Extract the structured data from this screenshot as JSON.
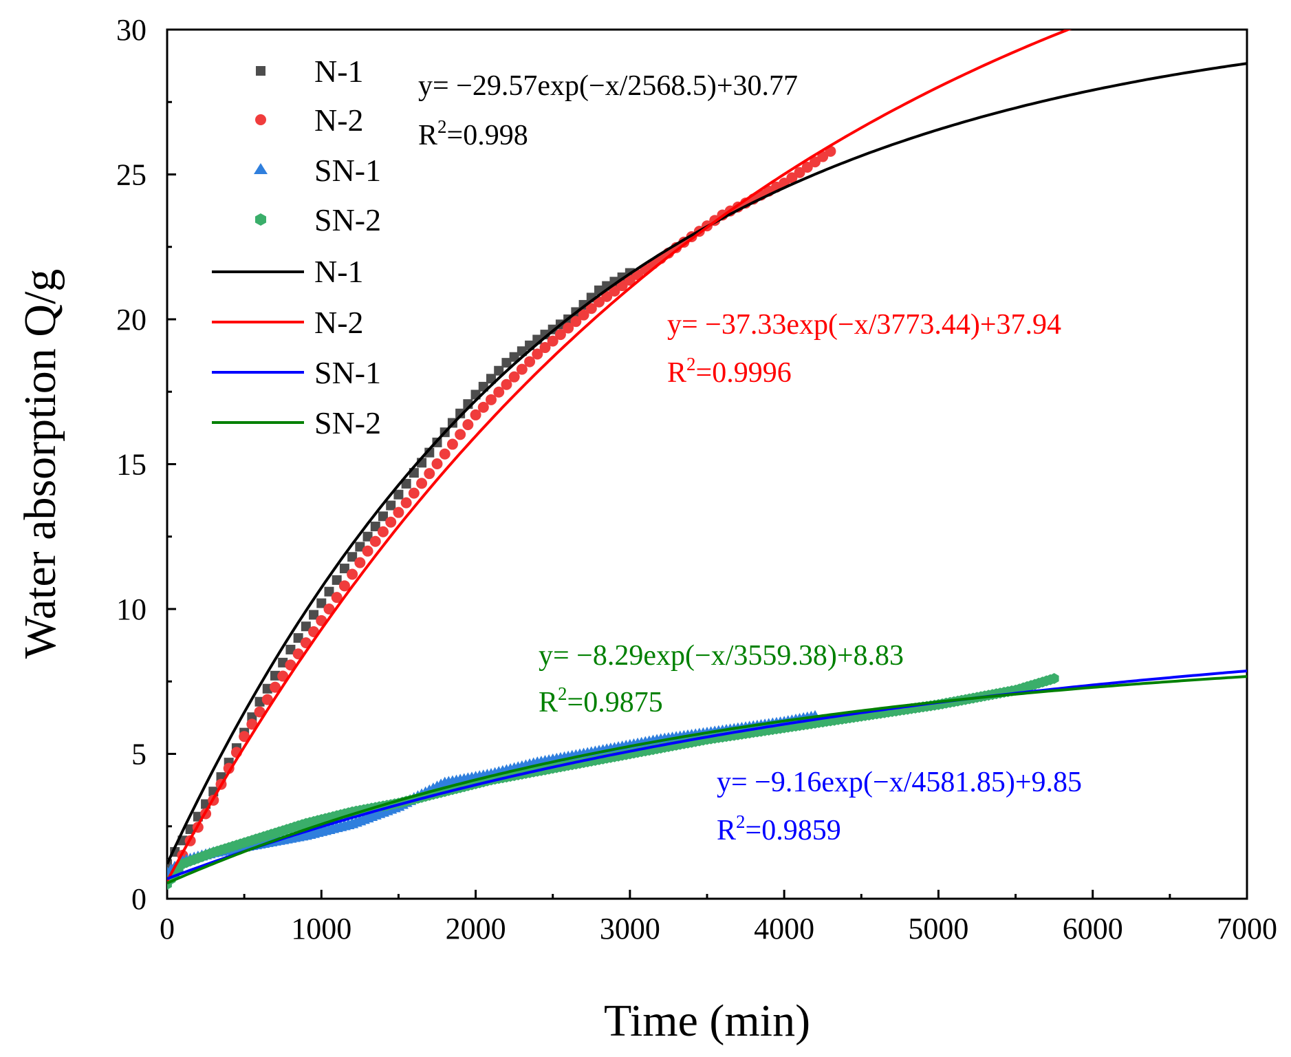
{
  "chart_data": {
    "type": "scatter",
    "title": "",
    "xlabel": "Time (min)",
    "ylabel": "Water absorption Q/g",
    "xlim": [
      0,
      7000
    ],
    "ylim": [
      0,
      30
    ],
    "xticks": [
      0,
      1000,
      2000,
      3000,
      4000,
      5000,
      6000,
      7000
    ],
    "yticks": [
      0,
      5,
      10,
      15,
      20,
      25,
      30
    ],
    "grid": false,
    "legend": {
      "position": "top-left",
      "entries": [
        {
          "label": "N-1",
          "kind": "marker",
          "marker": "square",
          "color": "#4d4d4d"
        },
        {
          "label": "N-2",
          "kind": "marker",
          "marker": "circle",
          "color": "#f03c3c"
        },
        {
          "label": "SN-1",
          "kind": "marker",
          "marker": "triangle",
          "color": "#2f7fdd"
        },
        {
          "label": "SN-2",
          "kind": "marker",
          "marker": "hexagon",
          "color": "#3aae6a"
        },
        {
          "label": "N-1",
          "kind": "line",
          "color": "#000000"
        },
        {
          "label": "N-2",
          "kind": "line",
          "color": "#ff0000"
        },
        {
          "label": "SN-1",
          "kind": "line",
          "color": "#0000ff"
        },
        {
          "label": "SN-2",
          "kind": "line",
          "color": "#008000"
        }
      ]
    },
    "series": [
      {
        "name": "N-1",
        "marker": "square",
        "color": "#4d4d4d",
        "marker_step": 50,
        "fit": {
          "A": 29.57,
          "t": 2568.5,
          "y0": 30.77
        },
        "points": [
          [
            0,
            1.2
          ],
          [
            60,
            1.7
          ],
          [
            150,
            2.4
          ],
          [
            300,
            3.7
          ],
          [
            450,
            5.2
          ],
          [
            600,
            6.8
          ],
          [
            800,
            8.6
          ],
          [
            1000,
            10.2
          ],
          [
            1200,
            11.8
          ],
          [
            1400,
            13.2
          ],
          [
            1600,
            14.7
          ],
          [
            1800,
            16.1
          ],
          [
            2000,
            17.4
          ],
          [
            2200,
            18.5
          ],
          [
            2400,
            19.3
          ],
          [
            2600,
            20.0
          ],
          [
            2800,
            21.0
          ],
          [
            3000,
            21.6
          ]
        ]
      },
      {
        "name": "N-2",
        "marker": "circle",
        "color": "#f03c3c",
        "marker_step": 50,
        "fit": {
          "A": 37.33,
          "t": 3773.44,
          "y0": 37.94
        },
        "points": [
          [
            0,
            0.6
          ],
          [
            60,
            1.1
          ],
          [
            150,
            2.0
          ],
          [
            300,
            3.4
          ],
          [
            500,
            5.6
          ],
          [
            700,
            7.3
          ],
          [
            1000,
            9.6
          ],
          [
            1300,
            12.0
          ],
          [
            1600,
            14.0
          ],
          [
            2000,
            16.7
          ],
          [
            2400,
            18.8
          ],
          [
            2800,
            20.6
          ],
          [
            3200,
            22.1
          ],
          [
            3600,
            23.6
          ],
          [
            4000,
            24.7
          ],
          [
            4300,
            25.8
          ]
        ]
      },
      {
        "name": "SN-1",
        "marker": "triangle",
        "color": "#2f7fdd",
        "marker_step": 25,
        "fit": {
          "A": 9.16,
          "t": 4581.85,
          "y0": 9.85
        },
        "points": [
          [
            0,
            0.9
          ],
          [
            100,
            1.3
          ],
          [
            300,
            1.6
          ],
          [
            600,
            1.9
          ],
          [
            900,
            2.2
          ],
          [
            1200,
            2.6
          ],
          [
            1500,
            3.2
          ],
          [
            1800,
            4.0
          ],
          [
            2100,
            4.3
          ],
          [
            2400,
            4.7
          ],
          [
            2800,
            5.1
          ],
          [
            3200,
            5.5
          ],
          [
            3600,
            5.8
          ],
          [
            4000,
            6.1
          ],
          [
            4200,
            6.3
          ]
        ]
      },
      {
        "name": "SN-2",
        "marker": "hexagon",
        "color": "#3aae6a",
        "marker_step": 25,
        "fit": {
          "A": 8.29,
          "t": 3559.38,
          "y0": 8.83
        },
        "points": [
          [
            0,
            0.5
          ],
          [
            100,
            1.2
          ],
          [
            300,
            1.6
          ],
          [
            600,
            2.1
          ],
          [
            900,
            2.6
          ],
          [
            1200,
            3.0
          ],
          [
            1500,
            3.3
          ],
          [
            1800,
            3.7
          ],
          [
            2100,
            4.1
          ],
          [
            2500,
            4.5
          ],
          [
            3000,
            5.0
          ],
          [
            3500,
            5.5
          ],
          [
            4000,
            5.9
          ],
          [
            4500,
            6.3
          ],
          [
            5000,
            6.7
          ],
          [
            5500,
            7.2
          ],
          [
            5750,
            7.6
          ]
        ]
      }
    ],
    "annotations": [
      {
        "series": "N-1",
        "equation": "y= −29.57exp(−x/2568.5)+30.77",
        "r2_prefix": "R",
        "r2_exp": "2",
        "r2_value": "=0.998",
        "color": "#000000"
      },
      {
        "series": "N-2",
        "equation": "y= −37.33exp(−x/3773.44)+37.94",
        "r2_prefix": "R",
        "r2_exp": "2",
        "r2_value": "=0.9996",
        "color": "#ff0000"
      },
      {
        "series": "SN-2",
        "equation": "y= −8.29exp(−x/3559.38)+8.83",
        "r2_prefix": "R",
        "r2_exp": "2",
        "r2_value": "=0.9875",
        "color": "#008000"
      },
      {
        "series": "SN-1",
        "equation": "y= −9.16exp(−x/4581.85)+9.85",
        "r2_prefix": "R",
        "r2_exp": "2",
        "r2_value": "=0.9859",
        "color": "#0000ff"
      }
    ]
  }
}
